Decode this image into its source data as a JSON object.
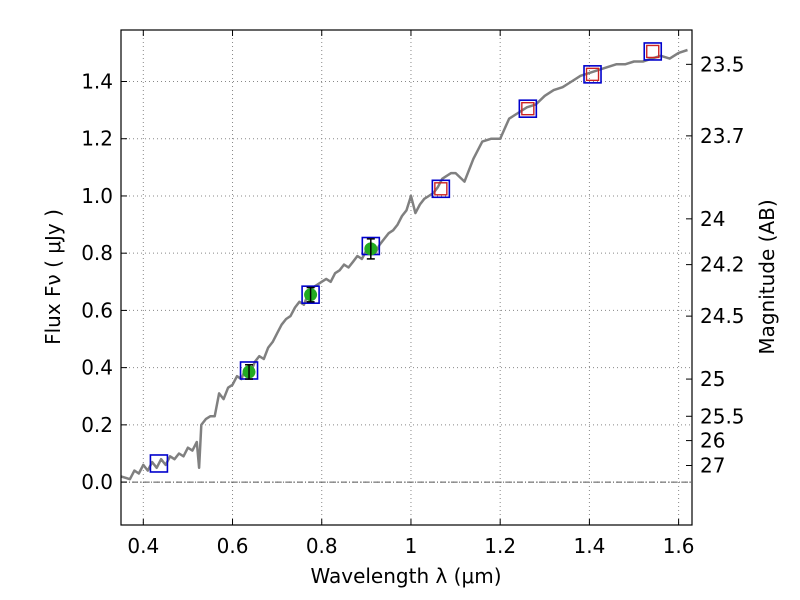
{
  "chart_data": {
    "type": "scatter",
    "xlabel": "Wavelength  λ (μm)",
    "ylabel": "Flux  Fν ( μJy )",
    "y2label": "Magnitude (AB)",
    "xlim": [
      0.35,
      1.63
    ],
    "ylim": [
      -0.15,
      1.58
    ],
    "grid": true,
    "x_ticks": [
      {
        "value": 0.4,
        "label": "0.4"
      },
      {
        "value": 0.6,
        "label": "0.6"
      },
      {
        "value": 0.8,
        "label": "0.8"
      },
      {
        "value": 1.0,
        "label": "1"
      },
      {
        "value": 1.2,
        "label": "1.2"
      },
      {
        "value": 1.4,
        "label": "1.4"
      },
      {
        "value": 1.6,
        "label": "1.6"
      }
    ],
    "y_ticks": [
      {
        "value": 0.0,
        "label": "0.0"
      },
      {
        "value": 0.2,
        "label": "0.2"
      },
      {
        "value": 0.4,
        "label": "0.4"
      },
      {
        "value": 0.6,
        "label": "0.6"
      },
      {
        "value": 0.8,
        "label": "0.8"
      },
      {
        "value": 1.0,
        "label": "1.0"
      },
      {
        "value": 1.2,
        "label": "1.2"
      },
      {
        "value": 1.4,
        "label": "1.4"
      }
    ],
    "y2_ticks": [
      {
        "flux": 1.46,
        "label": "23.5"
      },
      {
        "flux": 1.21,
        "label": "23.7"
      },
      {
        "flux": 0.92,
        "label": "24"
      },
      {
        "flux": 0.76,
        "label": "24.2"
      },
      {
        "flux": 0.58,
        "label": "24.5"
      },
      {
        "flux": 0.36,
        "label": "25"
      },
      {
        "flux": 0.23,
        "label": "25.5"
      },
      {
        "flux": 0.145,
        "label": "26"
      },
      {
        "flux": 0.058,
        "label": "27"
      }
    ],
    "series": [
      {
        "style": "line",
        "color": "#808080",
        "x": [
          0.35,
          0.37,
          0.38,
          0.39,
          0.4,
          0.41,
          0.42,
          0.43,
          0.44,
          0.45,
          0.46,
          0.47,
          0.48,
          0.49,
          0.5,
          0.51,
          0.52,
          0.525,
          0.53,
          0.54,
          0.55,
          0.56,
          0.57,
          0.58,
          0.59,
          0.6,
          0.61,
          0.62,
          0.63,
          0.64,
          0.65,
          0.66,
          0.67,
          0.68,
          0.69,
          0.7,
          0.71,
          0.72,
          0.73,
          0.74,
          0.75,
          0.76,
          0.77,
          0.78,
          0.79,
          0.8,
          0.81,
          0.82,
          0.83,
          0.84,
          0.85,
          0.86,
          0.87,
          0.88,
          0.89,
          0.9,
          0.91,
          0.92,
          0.93,
          0.94,
          0.95,
          0.96,
          0.97,
          0.98,
          0.99,
          1.0,
          1.01,
          1.02,
          1.03,
          1.04,
          1.05,
          1.06,
          1.07,
          1.08,
          1.09,
          1.1,
          1.12,
          1.14,
          1.16,
          1.18,
          1.2,
          1.22,
          1.24,
          1.26,
          1.28,
          1.3,
          1.32,
          1.34,
          1.36,
          1.38,
          1.4,
          1.42,
          1.44,
          1.46,
          1.48,
          1.5,
          1.52,
          1.54,
          1.56,
          1.58,
          1.6,
          1.62
        ],
        "y": [
          0.02,
          0.01,
          0.04,
          0.03,
          0.06,
          0.04,
          0.07,
          0.05,
          0.08,
          0.06,
          0.09,
          0.08,
          0.1,
          0.09,
          0.12,
          0.11,
          0.14,
          0.05,
          0.2,
          0.22,
          0.23,
          0.23,
          0.31,
          0.29,
          0.33,
          0.34,
          0.37,
          0.36,
          0.4,
          0.38,
          0.42,
          0.44,
          0.43,
          0.47,
          0.49,
          0.52,
          0.55,
          0.57,
          0.58,
          0.61,
          0.63,
          0.62,
          0.66,
          0.68,
          0.69,
          0.7,
          0.71,
          0.7,
          0.73,
          0.74,
          0.76,
          0.75,
          0.77,
          0.79,
          0.78,
          0.81,
          0.82,
          0.8,
          0.83,
          0.85,
          0.87,
          0.88,
          0.9,
          0.93,
          0.95,
          1.0,
          0.94,
          0.97,
          0.99,
          1.0,
          1.01,
          1.03,
          1.06,
          1.07,
          1.08,
          1.08,
          1.05,
          1.13,
          1.19,
          1.2,
          1.2,
          1.27,
          1.29,
          1.31,
          1.32,
          1.35,
          1.37,
          1.38,
          1.4,
          1.42,
          1.43,
          1.44,
          1.45,
          1.46,
          1.46,
          1.47,
          1.47,
          1.48,
          1.49,
          1.48,
          1.5,
          1.51
        ]
      },
      {
        "style": "open-square-blue",
        "x": [
          0.435,
          0.637,
          0.775,
          0.91,
          1.067,
          1.262,
          1.407,
          1.542
        ],
        "y": [
          0.065,
          0.39,
          0.655,
          0.825,
          1.025,
          1.305,
          1.425,
          1.505
        ]
      },
      {
        "style": "open-square-red",
        "x": [
          1.067,
          1.262,
          1.407,
          1.542
        ],
        "y": [
          1.025,
          1.305,
          1.425,
          1.505
        ]
      },
      {
        "style": "filled-circle-green",
        "errorbars": true,
        "x": [
          0.637,
          0.775,
          0.91
        ],
        "y": [
          0.385,
          0.655,
          0.815
        ],
        "err": [
          0.025,
          0.025,
          0.035
        ]
      }
    ],
    "colors": {
      "spectrum": "#808080",
      "model_square": "#0000cc",
      "nir_square": "#cc2222",
      "phot_point": "#22aa22",
      "errorbar": "#000000",
      "grid": "#888888"
    }
  }
}
